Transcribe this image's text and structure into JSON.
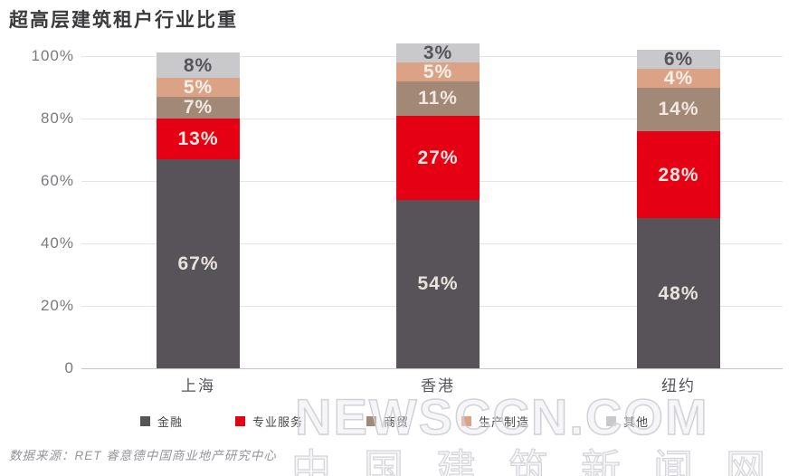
{
  "title": "超高层建筑租户行业比重",
  "source": "数据来源：RET 睿意德中国商业地产研究中心",
  "watermark": {
    "line1": "NEWSCCN.COM",
    "line2": "中国建筑新闻网"
  },
  "chart_data": {
    "type": "bar",
    "stacked": true,
    "title": "超高层建筑租户行业比重",
    "categories": [
      "上海",
      "香港",
      "纽约"
    ],
    "series": [
      {
        "name": "金融",
        "color": "#585359",
        "label_color": "#e9e2dc",
        "values": [
          67,
          54,
          48
        ]
      },
      {
        "name": "专业服务",
        "color": "#e60013",
        "label_color": "#f6e7e0",
        "values": [
          13,
          27,
          28
        ]
      },
      {
        "name": "商贸",
        "color": "#a18877",
        "label_color": "#f2e7de",
        "values": [
          7,
          11,
          14
        ]
      },
      {
        "name": "生产制造",
        "color": "#dba286",
        "label_color": "#f9f0e7",
        "values": [
          5,
          5,
          4
        ]
      },
      {
        "name": "其他",
        "color": "#c9c9cb",
        "label_color": "#55555a",
        "values": [
          8,
          3,
          6
        ]
      }
    ],
    "data_labels": true,
    "data_label_suffix": "%",
    "xlabel": "",
    "ylabel": "",
    "ylim": [
      0,
      100
    ],
    "yticks": [
      "100%",
      "80%",
      "60%",
      "40%",
      "20%",
      "0"
    ],
    "grid": true,
    "legend_position": "bottom"
  }
}
